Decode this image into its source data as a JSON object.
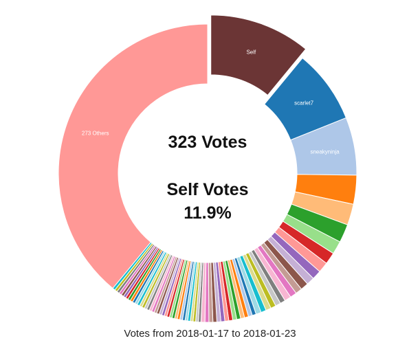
{
  "center": {
    "total_line": "323 Votes",
    "self_heading": "Self Votes",
    "self_percent": "11.9%"
  },
  "footer": {
    "caption": "Votes from 2018-01-17 to 2018-01-23"
  },
  "chart_data": {
    "type": "pie",
    "donut": true,
    "total": 323,
    "exploded_slice": "Self",
    "labeled_slices": [
      {
        "label": "Self",
        "value": 38.5,
        "color": "#6b3535",
        "show_label": true
      },
      {
        "label": "scarlet7",
        "value": 28,
        "color": "#1f77b4",
        "show_label": true
      },
      {
        "label": "sneakyninja",
        "value": 22,
        "color": "#aec7e8",
        "show_label": true
      }
    ],
    "unlabeled_slices": [
      {
        "value": 11,
        "color": "#ff7f0e"
      },
      {
        "value": 8,
        "color": "#ffbb78"
      },
      {
        "value": 7,
        "color": "#2ca02c"
      },
      {
        "value": 5,
        "color": "#98df8a"
      },
      {
        "value": 4.5,
        "color": "#d62728"
      },
      {
        "value": 4,
        "color": "#ff9896"
      },
      {
        "value": 3.5,
        "color": "#9467bd"
      },
      {
        "value": 3,
        "color": "#c5b0d5"
      },
      {
        "value": 3,
        "color": "#8c564b"
      },
      {
        "value": 2.5,
        "color": "#c49c94"
      },
      {
        "value": 2.5,
        "color": "#e377c2"
      },
      {
        "value": 2.5,
        "color": "#f7b6d2"
      },
      {
        "value": 2,
        "color": "#7f7f7f"
      },
      {
        "value": 2,
        "color": "#c7c7c7"
      },
      {
        "value": 2,
        "color": "#bcbd22"
      },
      {
        "value": 2,
        "color": "#dbdb8d"
      },
      {
        "value": 2,
        "color": "#17becf"
      },
      {
        "value": 2,
        "color": "#9edae5"
      },
      {
        "value": 1.5,
        "color": "#1f77b4"
      },
      {
        "value": 1.5,
        "color": "#aec7e8"
      },
      {
        "value": 1.5,
        "color": "#ff7f0e"
      },
      {
        "value": 1.5,
        "color": "#ffbb78"
      },
      {
        "value": 1.5,
        "color": "#2ca02c"
      },
      {
        "value": 1.5,
        "color": "#98df8a"
      },
      {
        "value": 1.5,
        "color": "#d62728"
      },
      {
        "value": 1.5,
        "color": "#ff9896"
      },
      {
        "value": 1.5,
        "color": "#9467bd"
      },
      {
        "value": 1.5,
        "color": "#c5b0d5"
      },
      {
        "value": 1.5,
        "color": "#8c564b"
      },
      {
        "value": 1.5,
        "color": "#c49c94"
      },
      {
        "value": 1.5,
        "color": "#e377c2"
      },
      {
        "value": 1.5,
        "color": "#f7b6d2"
      },
      {
        "value": 1,
        "color": "#7f7f7f"
      },
      {
        "value": 1,
        "color": "#c7c7c7"
      },
      {
        "value": 1,
        "color": "#bcbd22"
      },
      {
        "value": 1,
        "color": "#dbdb8d"
      },
      {
        "value": 1,
        "color": "#17becf"
      },
      {
        "value": 1,
        "color": "#9edae5"
      },
      {
        "value": 1,
        "color": "#1f77b4"
      },
      {
        "value": 1,
        "color": "#aec7e8"
      },
      {
        "value": 1,
        "color": "#ff7f0e"
      },
      {
        "value": 1,
        "color": "#ffbb78"
      },
      {
        "value": 1,
        "color": "#2ca02c"
      },
      {
        "value": 1,
        "color": "#98df8a"
      },
      {
        "value": 1,
        "color": "#d62728"
      },
      {
        "value": 1,
        "color": "#ff9896"
      },
      {
        "value": 1,
        "color": "#9467bd"
      },
      {
        "value": 1,
        "color": "#c5b0d5"
      },
      {
        "value": 1,
        "color": "#8c564b"
      },
      {
        "value": 1,
        "color": "#c49c94"
      },
      {
        "value": 1,
        "color": "#e377c2"
      },
      {
        "value": 1,
        "color": "#f7b6d2"
      },
      {
        "value": 1,
        "color": "#7f7f7f"
      },
      {
        "value": 1,
        "color": "#c7c7c7"
      },
      {
        "value": 1,
        "color": "#bcbd22"
      },
      {
        "value": 1,
        "color": "#dbdb8d"
      },
      {
        "value": 1,
        "color": "#17becf"
      },
      {
        "value": 1,
        "color": "#9edae5"
      },
      {
        "value": 1,
        "color": "#1f77b4"
      },
      {
        "value": 1,
        "color": "#ff7f0e"
      },
      {
        "value": 1,
        "color": "#2ca02c"
      },
      {
        "value": 1,
        "color": "#d62728"
      },
      {
        "value": 1,
        "color": "#9467bd"
      },
      {
        "value": 1,
        "color": "#8c564b"
      },
      {
        "value": 1,
        "color": "#e377c2"
      },
      {
        "value": 1,
        "color": "#7f7f7f"
      },
      {
        "value": 1,
        "color": "#bcbd22"
      },
      {
        "value": 1,
        "color": "#17becf"
      }
    ],
    "others_slice": {
      "label": "273 Others",
      "value": 137,
      "color": "#ff9896",
      "show_label": true
    }
  }
}
